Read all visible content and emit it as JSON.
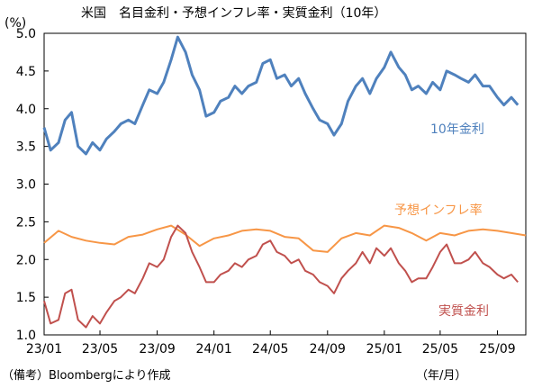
{
  "chart_data": {
    "type": "line",
    "title": "米国　名目金利・予想インフレ率・実質金利（10年）",
    "unit_label": "(%)",
    "x_unit_label": "（年/月）",
    "note": "（備考）Bloombergにより作成",
    "ylim": [
      1.0,
      5.0
    ],
    "yticks": [
      "1.0",
      "1.5",
      "2.0",
      "2.5",
      "3.0",
      "3.5",
      "4.0",
      "4.5",
      "5.0"
    ],
    "xlim": [
      "2023-01",
      "2025-11"
    ],
    "xticks": [
      "23/01",
      "23/05",
      "23/09",
      "24/01",
      "24/05",
      "24/09",
      "25/01",
      "25/05",
      "25/09"
    ],
    "grid": false,
    "series": [
      {
        "name": "10年金利",
        "color": "#4f81bd",
        "x": [
          "2023-01-01",
          "2023-01-15",
          "2023-02-01",
          "2023-02-15",
          "2023-03-01",
          "2023-03-15",
          "2023-04-01",
          "2023-04-15",
          "2023-05-01",
          "2023-05-15",
          "2023-06-01",
          "2023-06-15",
          "2023-07-01",
          "2023-07-15",
          "2023-08-01",
          "2023-08-15",
          "2023-09-01",
          "2023-09-15",
          "2023-10-01",
          "2023-10-15",
          "2023-11-01",
          "2023-11-15",
          "2023-12-01",
          "2023-12-15",
          "2024-01-01",
          "2024-01-15",
          "2024-02-01",
          "2024-02-15",
          "2024-03-01",
          "2024-03-15",
          "2024-04-01",
          "2024-04-15",
          "2024-05-01",
          "2024-05-15",
          "2024-06-01",
          "2024-06-15",
          "2024-07-01",
          "2024-07-15",
          "2024-08-01",
          "2024-08-15",
          "2024-09-01",
          "2024-09-15",
          "2024-10-01",
          "2024-10-15",
          "2024-11-01",
          "2024-11-15",
          "2024-12-01",
          "2024-12-15",
          "2025-01-01",
          "2025-01-15",
          "2025-02-01",
          "2025-02-15",
          "2025-03-01",
          "2025-03-15",
          "2025-04-01",
          "2025-04-15",
          "2025-05-01",
          "2025-05-15",
          "2025-06-01",
          "2025-06-15",
          "2025-07-01",
          "2025-07-15",
          "2025-08-01",
          "2025-08-15",
          "2025-09-01",
          "2025-09-15",
          "2025-10-01",
          "2025-10-15"
        ],
        "values": [
          3.75,
          3.45,
          3.55,
          3.85,
          3.95,
          3.5,
          3.4,
          3.55,
          3.45,
          3.6,
          3.7,
          3.8,
          3.85,
          3.8,
          4.05,
          4.25,
          4.2,
          4.35,
          4.65,
          4.95,
          4.75,
          4.45,
          4.25,
          3.9,
          3.95,
          4.1,
          4.15,
          4.3,
          4.2,
          4.3,
          4.35,
          4.6,
          4.65,
          4.4,
          4.45,
          4.3,
          4.4,
          4.2,
          4.0,
          3.85,
          3.8,
          3.65,
          3.8,
          4.1,
          4.3,
          4.4,
          4.2,
          4.4,
          4.55,
          4.75,
          4.55,
          4.45,
          4.25,
          4.3,
          4.2,
          4.35,
          4.25,
          4.5,
          4.45,
          4.4,
          4.35,
          4.45,
          4.3,
          4.3,
          4.15,
          4.05,
          4.15,
          4.05
        ]
      },
      {
        "name": "予想インフレ率",
        "color": "#f79646",
        "x": [
          "2023-01-01",
          "2023-02-01",
          "2023-03-01",
          "2023-04-01",
          "2023-05-01",
          "2023-06-01",
          "2023-07-01",
          "2023-08-01",
          "2023-09-01",
          "2023-10-01",
          "2023-11-01",
          "2023-12-01",
          "2024-01-01",
          "2024-02-01",
          "2024-03-01",
          "2024-04-01",
          "2024-05-01",
          "2024-06-01",
          "2024-07-01",
          "2024-08-01",
          "2024-09-01",
          "2024-10-01",
          "2024-11-01",
          "2024-12-01",
          "2025-01-01",
          "2025-02-01",
          "2025-03-01",
          "2025-04-01",
          "2025-05-01",
          "2025-06-01",
          "2025-07-01",
          "2025-08-01",
          "2025-09-01",
          "2025-10-01",
          "2025-11-01"
        ],
        "values": [
          2.22,
          2.38,
          2.3,
          2.25,
          2.22,
          2.2,
          2.3,
          2.33,
          2.4,
          2.45,
          2.33,
          2.18,
          2.28,
          2.32,
          2.38,
          2.4,
          2.38,
          2.3,
          2.28,
          2.12,
          2.1,
          2.28,
          2.35,
          2.32,
          2.45,
          2.42,
          2.35,
          2.25,
          2.35,
          2.32,
          2.38,
          2.4,
          2.38,
          2.35,
          2.32
        ]
      },
      {
        "name": "実質金利",
        "color": "#c0504d",
        "x": [
          "2023-01-01",
          "2023-01-15",
          "2023-02-01",
          "2023-02-15",
          "2023-03-01",
          "2023-03-15",
          "2023-04-01",
          "2023-04-15",
          "2023-05-01",
          "2023-05-15",
          "2023-06-01",
          "2023-06-15",
          "2023-07-01",
          "2023-07-15",
          "2023-08-01",
          "2023-08-15",
          "2023-09-01",
          "2023-09-15",
          "2023-10-01",
          "2023-10-15",
          "2023-11-01",
          "2023-11-15",
          "2023-12-01",
          "2023-12-15",
          "2024-01-01",
          "2024-01-15",
          "2024-02-01",
          "2024-02-15",
          "2024-03-01",
          "2024-03-15",
          "2024-04-01",
          "2024-04-15",
          "2024-05-01",
          "2024-05-15",
          "2024-06-01",
          "2024-06-15",
          "2024-07-01",
          "2024-07-15",
          "2024-08-01",
          "2024-08-15",
          "2024-09-01",
          "2024-09-15",
          "2024-10-01",
          "2024-10-15",
          "2024-11-01",
          "2024-11-15",
          "2024-12-01",
          "2024-12-15",
          "2025-01-01",
          "2025-01-15",
          "2025-02-01",
          "2025-02-15",
          "2025-03-01",
          "2025-03-15",
          "2025-04-01",
          "2025-04-15",
          "2025-05-01",
          "2025-05-15",
          "2025-06-01",
          "2025-06-15",
          "2025-07-01",
          "2025-07-15",
          "2025-08-01",
          "2025-08-15",
          "2025-09-01",
          "2025-09-15",
          "2025-10-01",
          "2025-10-15"
        ],
        "values": [
          1.45,
          1.15,
          1.2,
          1.55,
          1.6,
          1.2,
          1.1,
          1.25,
          1.15,
          1.3,
          1.45,
          1.5,
          1.6,
          1.55,
          1.75,
          1.95,
          1.9,
          2.0,
          2.3,
          2.45,
          2.35,
          2.1,
          1.9,
          1.7,
          1.7,
          1.8,
          1.85,
          1.95,
          1.9,
          2.0,
          2.05,
          2.2,
          2.25,
          2.1,
          2.05,
          1.95,
          2.0,
          1.85,
          1.8,
          1.7,
          1.65,
          1.55,
          1.75,
          1.85,
          1.95,
          2.1,
          1.95,
          2.15,
          2.05,
          2.15,
          1.95,
          1.85,
          1.7,
          1.75,
          1.75,
          1.9,
          2.1,
          2.2,
          1.95,
          1.95,
          2.0,
          2.1,
          1.95,
          1.9,
          1.8,
          1.75,
          1.8,
          1.7
        ]
      }
    ]
  }
}
